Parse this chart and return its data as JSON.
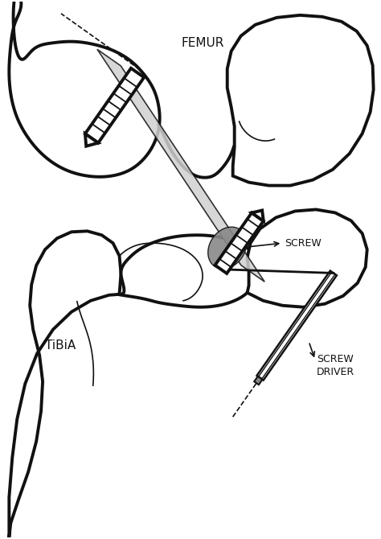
{
  "bg_color": "#ffffff",
  "line_color": "#111111",
  "light_gray": "#d0d0d0",
  "dark_gray": "#888888",
  "figsize": [
    4.74,
    6.7
  ],
  "dpi": 100,
  "labels": {
    "femur": "FEMUR",
    "tibia": "TiBiA",
    "screw": "SCREW",
    "screwdriver": "SCREW\nDRIVER"
  }
}
